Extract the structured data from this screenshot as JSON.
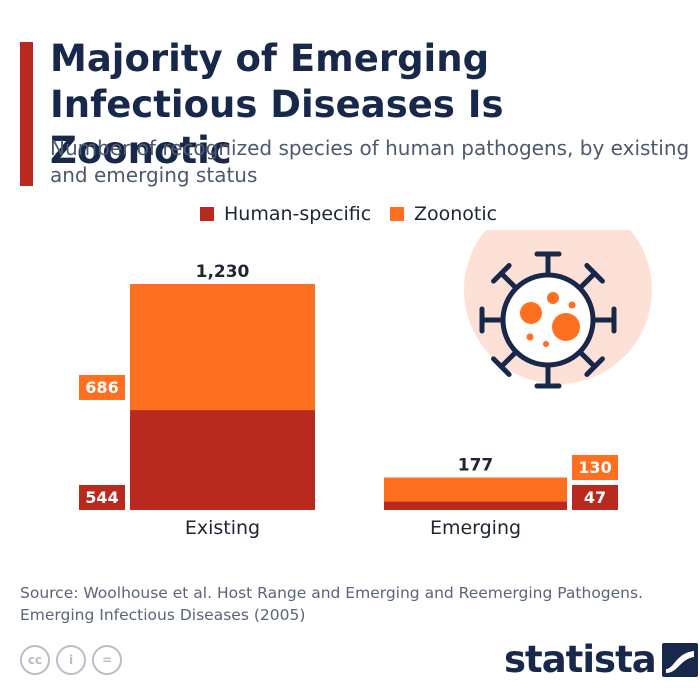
{
  "header": {
    "title": "Majority of Emerging Infectious Diseases Is Zoonotic",
    "subtitle": "Number of recognized species of human pathogens, by existing and emerging status"
  },
  "colors": {
    "accent": "#b8291e",
    "human_specific": "#b8291e",
    "zoonotic": "#ff6f20",
    "title": "#18284a",
    "virus_circle": "#fde1d6"
  },
  "chart_data": {
    "type": "bar",
    "stacked": true,
    "categories": [
      "Existing",
      "Emerging"
    ],
    "series": [
      {
        "name": "Human-specific",
        "values": [
          544,
          47
        ],
        "value_labels": [
          "544",
          "47"
        ]
      },
      {
        "name": "Zoonotic",
        "values": [
          686,
          130
        ],
        "value_labels": [
          "686",
          "130"
        ]
      }
    ],
    "totals": [
      1230,
      177
    ],
    "total_labels": [
      "1,230",
      "177"
    ],
    "ylim": [
      0,
      1230
    ],
    "grid": false,
    "legend_position": "top-center"
  },
  "footer": {
    "source": "Source: Woolhouse et al. Host Range and Emerging and Reemerging Pathogens. Emerging Infectious Diseases (2005)",
    "brand": "statista",
    "license_icons": [
      "cc-icon",
      "attribution-icon",
      "no-derivatives-icon"
    ],
    "license_glyphs": [
      "cc",
      "i",
      "="
    ]
  }
}
